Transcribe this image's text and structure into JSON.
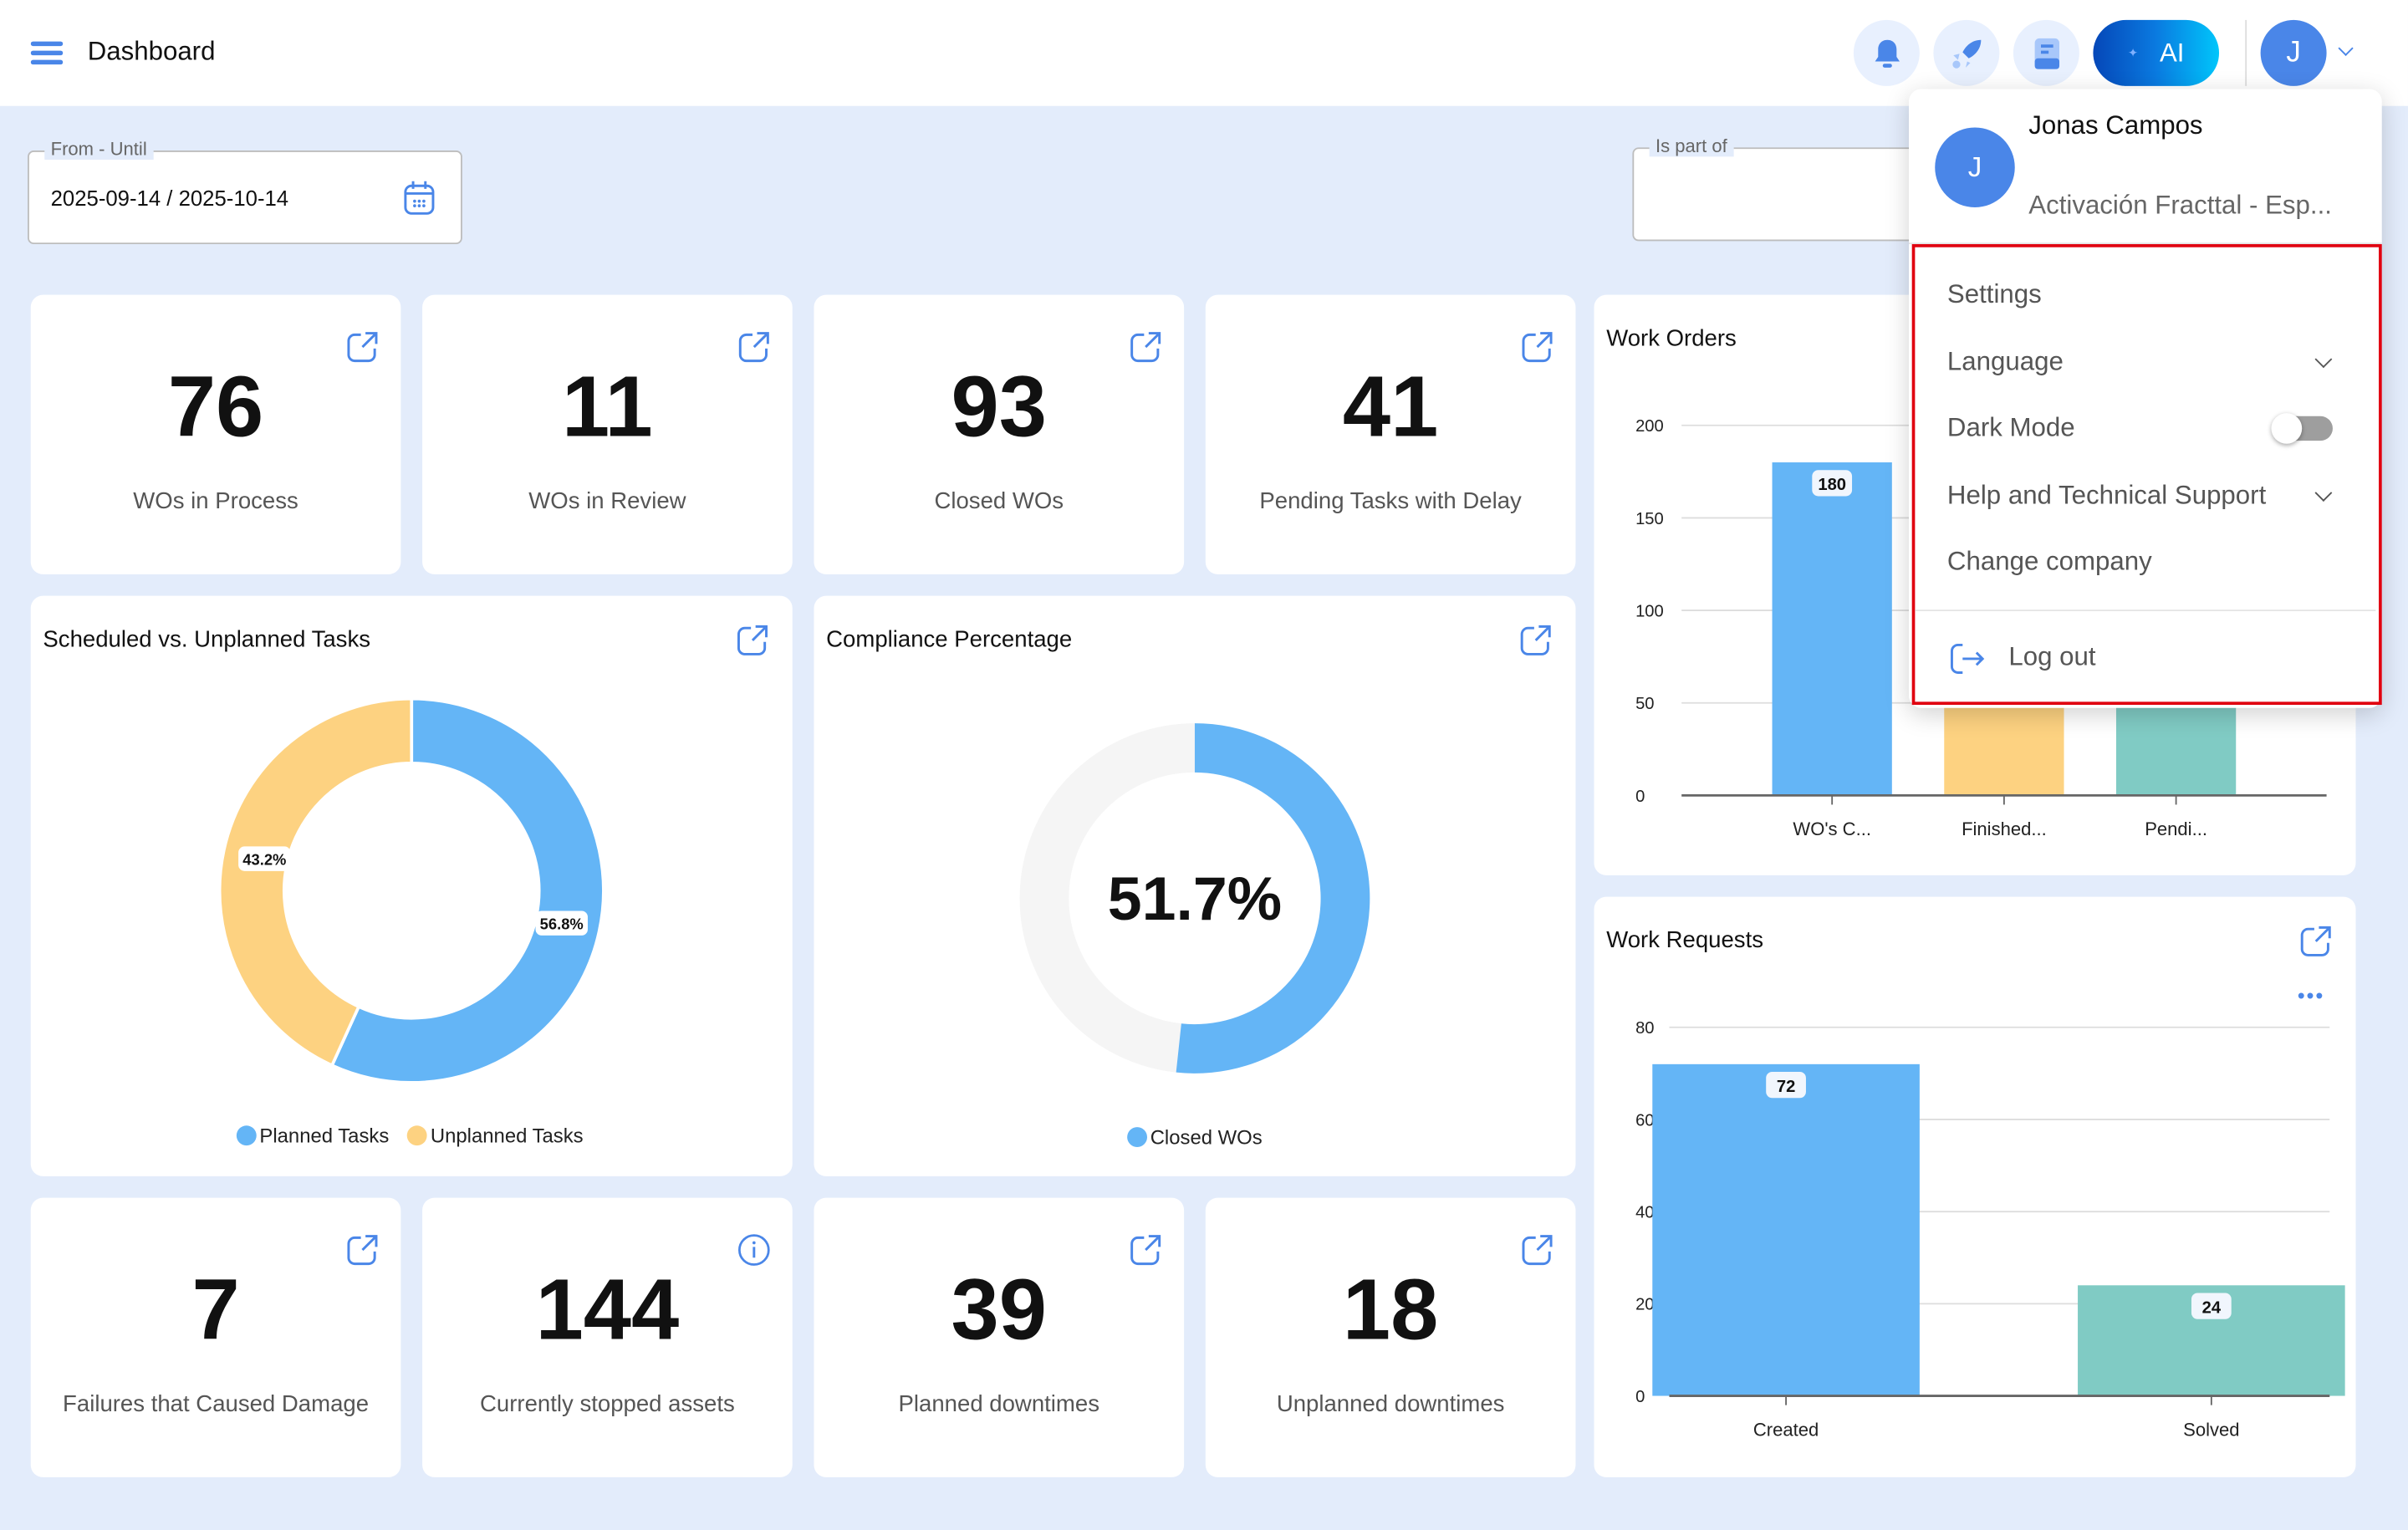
{
  "header": {
    "title": "Dashboard",
    "ai_label": "AI",
    "avatar_initial": "J"
  },
  "filters": {
    "date_label": "From - Until",
    "date_value": "2025-09-14 / 2025-10-14",
    "part_of_label": "Is part of",
    "part_of_value": ""
  },
  "kpis_top": [
    {
      "value": "76",
      "label": "WOs in Process"
    },
    {
      "value": "11",
      "label": "WOs in Review"
    },
    {
      "value": "93",
      "label": "Closed WOs"
    },
    {
      "value": "41",
      "label": "Pending Tasks with Delay"
    }
  ],
  "kpis_bottom": [
    {
      "value": "7",
      "label": "Failures that Caused Damage"
    },
    {
      "value": "144",
      "label": "Currently stopped assets"
    },
    {
      "value": "39",
      "label": "Planned downtimes"
    },
    {
      "value": "18",
      "label": "Unplanned downtimes"
    }
  ],
  "colors": {
    "blue": "#64b5f6",
    "yellow": "#fdd281",
    "teal": "#80cbc4",
    "accent": "#4a86e8",
    "highlight": "#e0000f"
  },
  "chart_data": [
    {
      "type": "pie",
      "title": "Scheduled vs. Unplanned Tasks",
      "series": [
        {
          "name": "Planned Tasks",
          "value": 56.8,
          "label": "56.8%"
        },
        {
          "name": "Unplanned Tasks",
          "value": 43.2,
          "label": "43.2%"
        }
      ],
      "legend": "bottom"
    },
    {
      "type": "pie",
      "title": "Compliance Percentage",
      "series": [
        {
          "name": "Closed WOs",
          "value": 51.7
        }
      ],
      "center_label": "51.7%",
      "legend": "bottom"
    },
    {
      "type": "bar",
      "title": "Work Orders",
      "categories": [
        "WO's C...",
        "Finished...",
        "Pendi..."
      ],
      "values": [
        180,
        null,
        null
      ],
      "value_labels": [
        "180",
        "",
        ""
      ],
      "ylim": [
        0,
        200
      ],
      "yticks": [
        "0",
        "50",
        "100",
        "150",
        "200"
      ],
      "grid": true
    },
    {
      "type": "bar",
      "title": "Work Requests",
      "categories": [
        "Created",
        "Solved"
      ],
      "values": [
        72,
        24
      ],
      "value_labels": [
        "72",
        "24"
      ],
      "ylim": [
        0,
        80
      ],
      "yticks": [
        "0",
        "20",
        "40",
        "60",
        "80"
      ],
      "grid": true
    }
  ],
  "user_menu": {
    "name": "Jonas Campos",
    "initial": "J",
    "company": "Activación Fracttal - Esp...",
    "items": [
      "Settings",
      "Language",
      "Dark Mode",
      "Help and Technical Support",
      "Change company"
    ],
    "dark_mode": false,
    "logout": "Log out"
  }
}
